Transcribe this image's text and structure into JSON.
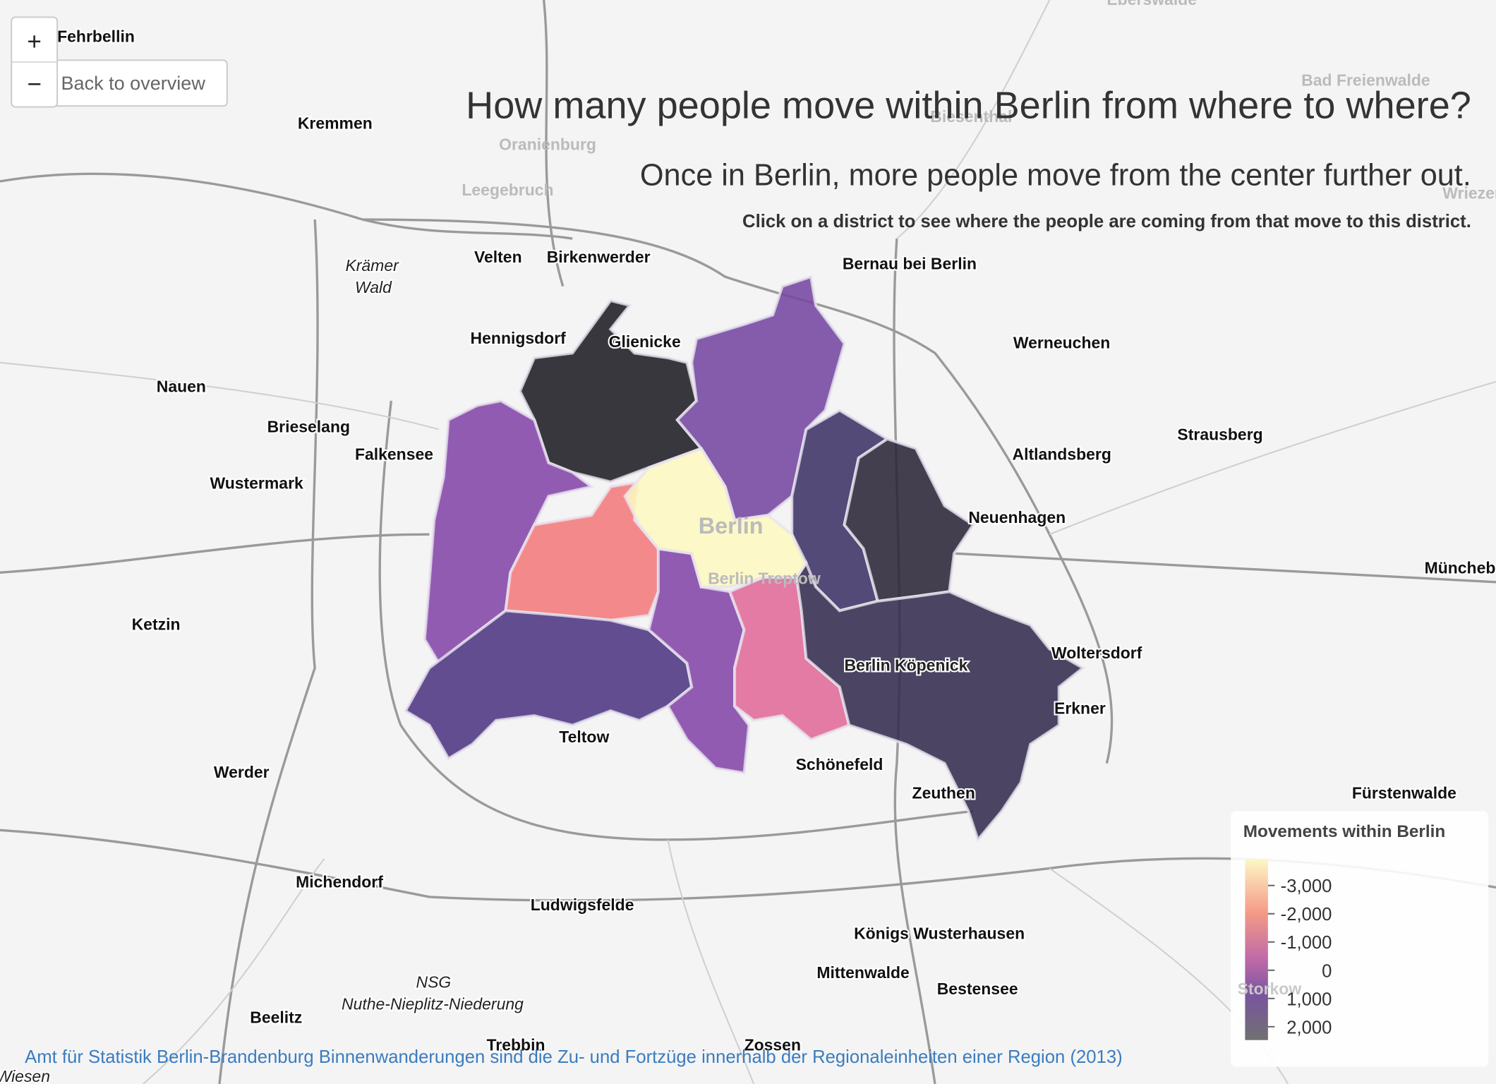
{
  "header": {
    "title": "How many people move within Berlin from where to where?",
    "subtitle": "Once in Berlin, more people move from the center further out.",
    "instruction": "Click on a district to see where the people are coming from that move to this district."
  },
  "controls": {
    "zoom_in": "+",
    "zoom_out": "−",
    "back": "Back to overview"
  },
  "legend": {
    "title": "Movements within Berlin",
    "labels": [
      "-3,000",
      "-2,000",
      "-1,000",
      "0",
      "1,000",
      "2,000"
    ]
  },
  "places": [
    "Fehrbellin",
    "Kremmen",
    "Oranienburg",
    "Leegebruch",
    "Biesenthal",
    "Bad Freienwalde",
    "Eberswalde",
    "Wriezen",
    "Velten",
    "Birkenwerder",
    "Bernau bei Berlin",
    "Krämer",
    "Wald",
    "Hennigsdorf",
    "Glienicke",
    "Werneuchen",
    "Nauen",
    "Brieselang",
    "Falkensee",
    "Wustermark",
    "Strausberg",
    "Altlandsberg",
    "Neuenhagen",
    "Berlin",
    "Berlin Treptow",
    "Müncheberg",
    "Ketzin",
    "Woltersdorf",
    "Berlin Köpenick",
    "Erkner",
    "Teltow",
    "Schönefeld",
    "Werder",
    "Zeuthen",
    "Fürstenwalde",
    "Michendorf",
    "Ludwigsfelde",
    "Königs Wusterhausen",
    "Mittenwalde",
    "Bestensee",
    "NSG",
    "Nuthe-Nieplitz-Niederung",
    "Beelitz",
    "Trebbin",
    "Zossen",
    "Storkow",
    "Wiesen"
  ],
  "attribution": "Amt für Statistik Berlin-Brandenburg Binnenwanderungen sind die Zu- und Fortzüge innerhalb der Regionaleinheiten einer Region (2013)"
}
